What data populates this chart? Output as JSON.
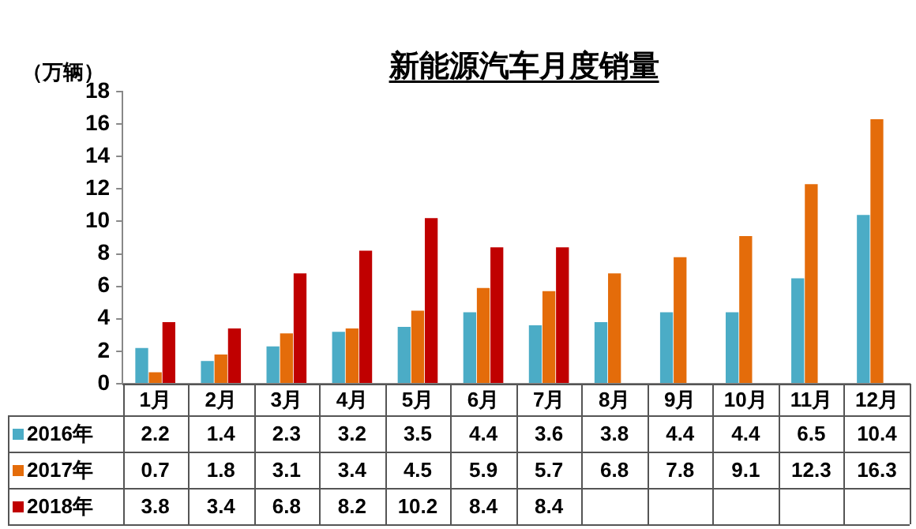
{
  "chart_data": {
    "type": "bar",
    "title": "新能源汽车月度销量",
    "ylabel": "（万辆）",
    "categories": [
      "1月",
      "2月",
      "3月",
      "4月",
      "5月",
      "6月",
      "7月",
      "8月",
      "9月",
      "10月",
      "11月",
      "12月"
    ],
    "series": [
      {
        "name": "2016年",
        "color": "#4bacc6",
        "values": [
          2.2,
          1.4,
          2.3,
          3.2,
          3.5,
          4.4,
          3.6,
          3.8,
          4.4,
          4.4,
          6.5,
          10.4
        ]
      },
      {
        "name": "2017年",
        "color": "#e46c0a",
        "values": [
          0.7,
          1.8,
          3.1,
          3.4,
          4.5,
          5.9,
          5.7,
          6.8,
          7.8,
          9.1,
          12.3,
          16.3
        ]
      },
      {
        "name": "2018年",
        "color": "#c00000",
        "values": [
          3.8,
          3.4,
          6.8,
          8.2,
          10.2,
          8.4,
          8.4,
          null,
          null,
          null,
          null,
          null
        ]
      }
    ],
    "ylim": [
      0,
      18
    ],
    "yticks": [
      0,
      2,
      4,
      6,
      8,
      10,
      12,
      14,
      16,
      18
    ],
    "grid": false,
    "legend": "bottom left",
    "data_labels": true
  }
}
